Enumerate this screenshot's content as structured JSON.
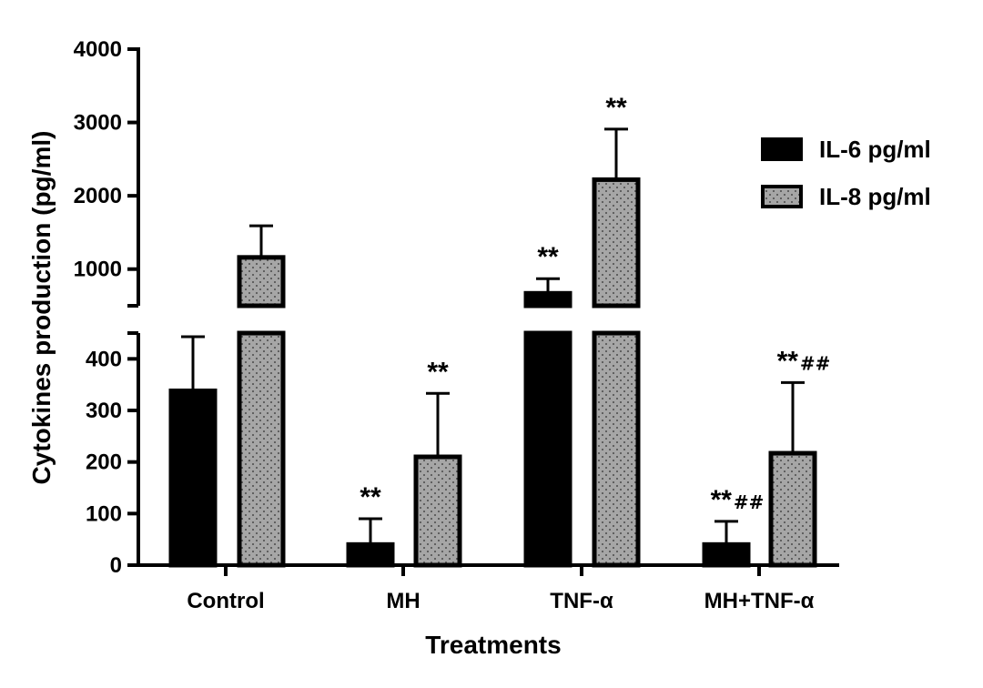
{
  "chart_data": {
    "type": "bar",
    "title": "",
    "xlabel": "Treatments",
    "ylabel": "Cytokines production (pg/ml)",
    "categories": [
      "Control",
      "MH",
      "TNF-α",
      "MH+TNF-α"
    ],
    "y_axis": {
      "broken": true,
      "lower_segment": {
        "range": [
          0,
          450
        ],
        "ticks": [
          "0",
          "100",
          "200",
          "300",
          "400"
        ]
      },
      "upper_segment": {
        "range": [
          500,
          4000
        ],
        "ticks": [
          "1000",
          "2000",
          "3000",
          "4000"
        ]
      }
    },
    "legend_position": "right",
    "series": [
      {
        "name": "IL-6 pg/ml",
        "color": "#000000",
        "pattern": "solid",
        "values": [
          338,
          40,
          670,
          40
        ],
        "errors": [
          105,
          50,
          200,
          45
        ],
        "annotations": [
          {
            "stars": "",
            "hashes": ""
          },
          {
            "stars": "**",
            "hashes": ""
          },
          {
            "stars": "**",
            "hashes": ""
          },
          {
            "stars": "**",
            "hashes": "##"
          }
        ]
      },
      {
        "name": "IL-8 pg/ml",
        "color": "#a6a6a6",
        "pattern": "dotted",
        "values": [
          1160,
          210,
          2220,
          217
        ],
        "errors": [
          430,
          123,
          690,
          137
        ],
        "annotations": [
          {
            "stars": "",
            "hashes": ""
          },
          {
            "stars": "**",
            "hashes": ""
          },
          {
            "stars": "**",
            "hashes": ""
          },
          {
            "stars": "**",
            "hashes": "##"
          }
        ]
      }
    ]
  }
}
